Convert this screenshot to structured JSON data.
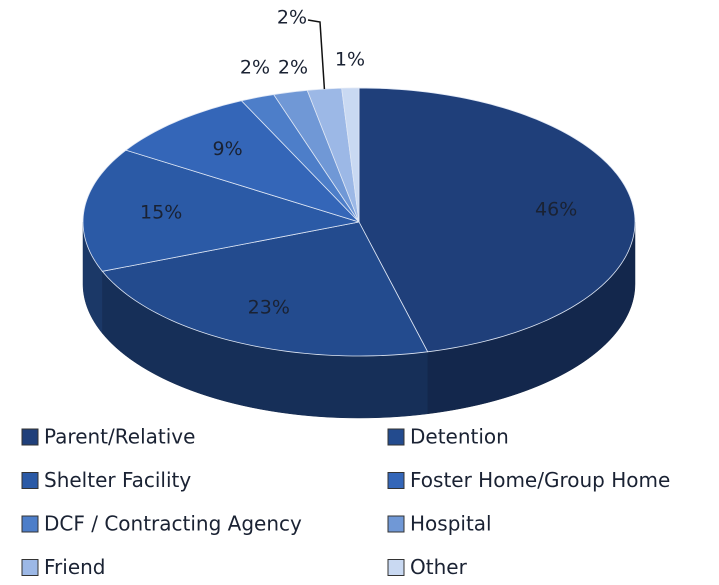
{
  "chart_data": {
    "type": "pie",
    "categories": [
      "Parent/Relative",
      "Detention",
      "Shelter Facility",
      "Foster Home/Group Home",
      "DCF / Contracting Agency",
      "Hospital",
      "Friend",
      "Other"
    ],
    "values": [
      46,
      23,
      15,
      9,
      2,
      2,
      2,
      1
    ],
    "value_labels": [
      "46%",
      "23%",
      "15%",
      "9%",
      "2%",
      "2%",
      "2%",
      "1%"
    ],
    "colors": [
      "#1f3f7a",
      "#234b8e",
      "#2b5aa6",
      "#3466b8",
      "#4d7ec9",
      "#7098d6",
      "#9cb8e6",
      "#c9d9f2"
    ],
    "legend": "bottom"
  }
}
